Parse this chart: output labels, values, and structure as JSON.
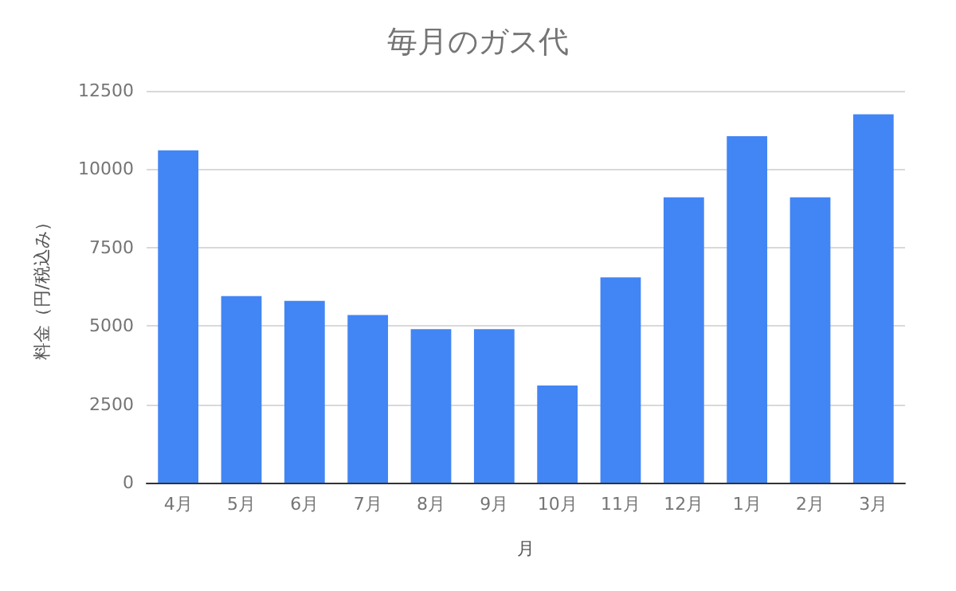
{
  "chart_data": {
    "type": "bar",
    "title": "毎月のガス代",
    "xlabel": "月",
    "ylabel": "料金（円/税込み）",
    "categories": [
      "4月",
      "5月",
      "6月",
      "7月",
      "8月",
      "9月",
      "10月",
      "11月",
      "12月",
      "1月",
      "2月",
      "3月"
    ],
    "values": [
      10600,
      5950,
      5800,
      5350,
      4900,
      4900,
      3100,
      6550,
      9100,
      11050,
      9100,
      11750
    ],
    "color": "#4285f4",
    "ylim": [
      0,
      12500
    ],
    "yticks": [
      0,
      2500,
      5000,
      7500,
      10000,
      12500
    ],
    "grid": "y"
  }
}
